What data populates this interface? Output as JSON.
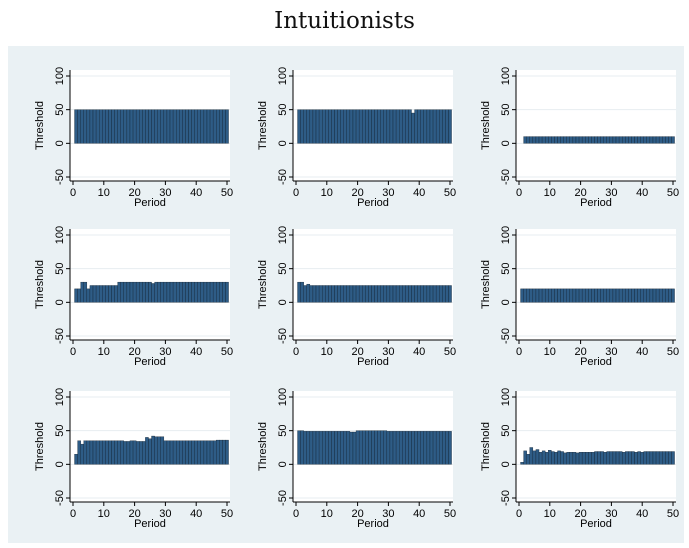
{
  "title": "Intuitionists",
  "colors": {
    "bar_fill": "#2e5c86",
    "bar_stroke": "#0f1f2e",
    "plot_bg": "#ffffff",
    "panel_bg": "#eaf1f4",
    "grid": "#e7edf1"
  },
  "chart_data": [
    {
      "type": "bar",
      "xlabel": "Period",
      "ylabel": "Threshold",
      "xlim": [
        0,
        50
      ],
      "ylim": [
        -50,
        100
      ],
      "xticks": [
        0,
        10,
        20,
        30,
        40,
        50
      ],
      "yticks": [
        -50,
        0,
        50,
        100
      ],
      "grid": true,
      "x": [
        1,
        2,
        3,
        4,
        5,
        6,
        7,
        8,
        9,
        10,
        11,
        12,
        13,
        14,
        15,
        16,
        17,
        18,
        19,
        20,
        21,
        22,
        23,
        24,
        25,
        26,
        27,
        28,
        29,
        30,
        31,
        32,
        33,
        34,
        35,
        36,
        37,
        38,
        39,
        40,
        41,
        42,
        43,
        44,
        45,
        46,
        47,
        48,
        49,
        50
      ],
      "values": [
        50,
        50,
        50,
        50,
        50,
        50,
        50,
        50,
        50,
        50,
        50,
        50,
        50,
        50,
        50,
        50,
        50,
        50,
        50,
        50,
        50,
        50,
        50,
        50,
        50,
        50,
        50,
        50,
        50,
        50,
        50,
        50,
        50,
        50,
        50,
        50,
        50,
        50,
        50,
        50,
        50,
        50,
        50,
        50,
        50,
        50,
        50,
        50,
        50,
        50
      ]
    },
    {
      "type": "bar",
      "xlabel": "Period",
      "ylabel": "Threshold",
      "xlim": [
        0,
        50
      ],
      "ylim": [
        -50,
        100
      ],
      "xticks": [
        0,
        10,
        20,
        30,
        40,
        50
      ],
      "yticks": [
        -50,
        0,
        50,
        100
      ],
      "grid": true,
      "x": [
        1,
        2,
        3,
        4,
        5,
        6,
        7,
        8,
        9,
        10,
        11,
        12,
        13,
        14,
        15,
        16,
        17,
        18,
        19,
        20,
        21,
        22,
        23,
        24,
        25,
        26,
        27,
        28,
        29,
        30,
        31,
        32,
        33,
        34,
        35,
        36,
        37,
        38,
        39,
        40,
        41,
        42,
        43,
        44,
        45,
        46,
        47,
        48,
        49,
        50
      ],
      "values": [
        50,
        50,
        50,
        50,
        50,
        50,
        50,
        50,
        50,
        50,
        50,
        50,
        50,
        50,
        50,
        50,
        50,
        50,
        50,
        50,
        50,
        50,
        50,
        50,
        50,
        50,
        50,
        50,
        50,
        50,
        50,
        50,
        50,
        50,
        50,
        50,
        50,
        45,
        50,
        50,
        50,
        50,
        50,
        50,
        50,
        50,
        50,
        50,
        50,
        50
      ]
    },
    {
      "type": "bar",
      "xlabel": "Period",
      "ylabel": "Threshold",
      "xlim": [
        0,
        50
      ],
      "ylim": [
        -50,
        100
      ],
      "xticks": [
        0,
        10,
        20,
        30,
        40,
        50
      ],
      "yticks": [
        -50,
        0,
        50,
        100
      ],
      "grid": true,
      "x": [
        2,
        3,
        4,
        5,
        6,
        7,
        8,
        9,
        10,
        11,
        12,
        13,
        14,
        15,
        16,
        17,
        18,
        19,
        20,
        21,
        22,
        23,
        24,
        25,
        26,
        27,
        28,
        29,
        30,
        31,
        32,
        33,
        34,
        35,
        36,
        37,
        38,
        39,
        40,
        41,
        42,
        43,
        44,
        45,
        46,
        47,
        48,
        49,
        50
      ],
      "values": [
        10,
        10,
        10,
        10,
        10,
        10,
        10,
        10,
        10,
        10,
        10,
        10,
        10,
        10,
        10,
        10,
        10,
        10,
        10,
        10,
        10,
        10,
        10,
        10,
        10,
        10,
        10,
        10,
        10,
        10,
        10,
        10,
        10,
        10,
        10,
        10,
        10,
        10,
        10,
        10,
        10,
        10,
        10,
        10,
        10,
        10,
        10,
        10,
        10
      ]
    },
    {
      "type": "bar",
      "xlabel": "Period",
      "ylabel": "Threshold",
      "xlim": [
        0,
        50
      ],
      "ylim": [
        -50,
        100
      ],
      "xticks": [
        0,
        10,
        20,
        30,
        40,
        50
      ],
      "yticks": [
        -50,
        0,
        50,
        100
      ],
      "grid": true,
      "x": [
        1,
        2,
        3,
        4,
        5,
        6,
        7,
        8,
        9,
        10,
        11,
        12,
        13,
        14,
        15,
        16,
        17,
        18,
        19,
        20,
        21,
        22,
        23,
        24,
        25,
        26,
        27,
        28,
        29,
        30,
        31,
        32,
        33,
        34,
        35,
        36,
        37,
        38,
        39,
        40,
        41,
        42,
        43,
        44,
        45,
        46,
        47,
        48,
        49,
        50
      ],
      "values": [
        20,
        20,
        30,
        30,
        20,
        25,
        25,
        25,
        25,
        25,
        25,
        25,
        25,
        25,
        30,
        30,
        30,
        30,
        30,
        30,
        30,
        30,
        30,
        30,
        30,
        28,
        30,
        30,
        30,
        30,
        30,
        30,
        30,
        30,
        30,
        30,
        30,
        30,
        30,
        30,
        30,
        30,
        30,
        30,
        30,
        30,
        30,
        30,
        30,
        30
      ]
    },
    {
      "type": "bar",
      "xlabel": "Period",
      "ylabel": "Threshold",
      "xlim": [
        0,
        50
      ],
      "ylim": [
        -50,
        100
      ],
      "xticks": [
        0,
        10,
        20,
        30,
        40,
        50
      ],
      "yticks": [
        -50,
        0,
        50,
        100
      ],
      "grid": true,
      "x": [
        1,
        2,
        3,
        4,
        5,
        6,
        7,
        8,
        9,
        10,
        11,
        12,
        13,
        14,
        15,
        16,
        17,
        18,
        19,
        20,
        21,
        22,
        23,
        24,
        25,
        26,
        27,
        28,
        29,
        30,
        31,
        32,
        33,
        34,
        35,
        36,
        37,
        38,
        39,
        40,
        41,
        42,
        43,
        44,
        45,
        46,
        47,
        48,
        49,
        50
      ],
      "values": [
        30,
        30,
        25,
        27,
        25,
        25,
        25,
        25,
        25,
        25,
        25,
        25,
        25,
        25,
        25,
        25,
        25,
        25,
        25,
        25,
        25,
        25,
        25,
        25,
        25,
        25,
        25,
        25,
        25,
        25,
        25,
        25,
        25,
        25,
        25,
        25,
        25,
        25,
        25,
        25,
        25,
        25,
        25,
        25,
        25,
        25,
        25,
        25,
        25,
        25
      ]
    },
    {
      "type": "bar",
      "xlabel": "Period",
      "ylabel": "Threshold",
      "xlim": [
        0,
        50
      ],
      "ylim": [
        -50,
        100
      ],
      "xticks": [
        0,
        10,
        20,
        30,
        40,
        50
      ],
      "yticks": [
        -50,
        0,
        50,
        100
      ],
      "grid": true,
      "x": [
        1,
        2,
        3,
        4,
        5,
        6,
        7,
        8,
        9,
        10,
        11,
        12,
        13,
        14,
        15,
        16,
        17,
        18,
        19,
        20,
        21,
        22,
        23,
        24,
        25,
        26,
        27,
        28,
        29,
        30,
        31,
        32,
        33,
        34,
        35,
        36,
        37,
        38,
        39,
        40,
        41,
        42,
        43,
        44,
        45,
        46,
        47,
        48,
        49,
        50
      ],
      "values": [
        20,
        20,
        20,
        20,
        20,
        20,
        20,
        20,
        20,
        20,
        20,
        20,
        20,
        20,
        20,
        20,
        20,
        20,
        20,
        20,
        20,
        20,
        20,
        20,
        20,
        20,
        20,
        20,
        20,
        20,
        20,
        20,
        20,
        20,
        20,
        20,
        20,
        20,
        20,
        20,
        20,
        20,
        20,
        20,
        20,
        20,
        20,
        20,
        20,
        20
      ]
    },
    {
      "type": "bar",
      "xlabel": "Period",
      "ylabel": "Threshold",
      "xlim": [
        0,
        50
      ],
      "ylim": [
        -50,
        100
      ],
      "xticks": [
        0,
        10,
        20,
        30,
        40,
        50
      ],
      "yticks": [
        -50,
        0,
        50,
        100
      ],
      "grid": true,
      "x": [
        1,
        2,
        3,
        4,
        5,
        6,
        7,
        8,
        9,
        10,
        11,
        12,
        13,
        14,
        15,
        16,
        17,
        18,
        19,
        20,
        21,
        22,
        23,
        24,
        25,
        26,
        27,
        28,
        29,
        30,
        31,
        32,
        33,
        34,
        35,
        36,
        37,
        38,
        39,
        40,
        41,
        42,
        43,
        44,
        45,
        46,
        47,
        48,
        49,
        50
      ],
      "values": [
        15,
        35,
        30,
        35,
        35,
        35,
        35,
        35,
        35,
        35,
        35,
        35,
        35,
        35,
        35,
        35,
        34,
        34,
        35,
        35,
        34,
        34,
        34,
        40,
        38,
        42,
        41,
        41,
        41,
        35,
        35,
        35,
        35,
        35,
        35,
        35,
        35,
        35,
        35,
        35,
        35,
        35,
        35,
        35,
        35,
        35,
        36,
        36,
        36,
        36
      ]
    },
    {
      "type": "bar",
      "xlabel": "Period",
      "ylabel": "Threshold",
      "xlim": [
        0,
        50
      ],
      "ylim": [
        -50,
        100
      ],
      "xticks": [
        0,
        10,
        20,
        30,
        40,
        50
      ],
      "yticks": [
        -50,
        0,
        50,
        100
      ],
      "grid": true,
      "x": [
        1,
        2,
        3,
        4,
        5,
        6,
        7,
        8,
        9,
        10,
        11,
        12,
        13,
        14,
        15,
        16,
        17,
        18,
        19,
        20,
        21,
        22,
        23,
        24,
        25,
        26,
        27,
        28,
        29,
        30,
        31,
        32,
        33,
        34,
        35,
        36,
        37,
        38,
        39,
        40,
        41,
        42,
        43,
        44,
        45,
        46,
        47,
        48,
        49,
        50
      ],
      "values": [
        50,
        50,
        49,
        49,
        49,
        49,
        49,
        49,
        49,
        49,
        49,
        49,
        49,
        49,
        49,
        49,
        49,
        48,
        48,
        50,
        50,
        50,
        50,
        50,
        50,
        50,
        50,
        50,
        50,
        49,
        49,
        49,
        49,
        49,
        49,
        49,
        49,
        49,
        49,
        49,
        49,
        49,
        49,
        49,
        49,
        49,
        49,
        49,
        49,
        49
      ]
    },
    {
      "type": "bar",
      "xlabel": "Period",
      "ylabel": "Threshold",
      "xlim": [
        0,
        50
      ],
      "ylim": [
        -50,
        100
      ],
      "xticks": [
        0,
        10,
        20,
        30,
        40,
        50
      ],
      "yticks": [
        -50,
        0,
        50,
        100
      ],
      "grid": true,
      "x": [
        1,
        2,
        3,
        4,
        5,
        6,
        7,
        8,
        9,
        10,
        11,
        12,
        13,
        14,
        15,
        16,
        17,
        18,
        19,
        20,
        21,
        22,
        23,
        24,
        25,
        26,
        27,
        28,
        29,
        30,
        31,
        32,
        33,
        34,
        35,
        36,
        37,
        38,
        39,
        40,
        41,
        42,
        43,
        44,
        45,
        46,
        47,
        48,
        49,
        50
      ],
      "values": [
        3,
        20,
        15,
        25,
        20,
        22,
        18,
        20,
        18,
        21,
        19,
        18,
        20,
        19,
        17,
        18,
        18,
        18,
        17,
        18,
        18,
        18,
        18,
        18,
        19,
        19,
        19,
        18,
        19,
        19,
        19,
        19,
        19,
        18,
        19,
        19,
        19,
        18,
        19,
        18,
        19,
        19,
        19,
        19,
        19,
        19,
        19,
        19,
        19,
        19
      ]
    }
  ]
}
